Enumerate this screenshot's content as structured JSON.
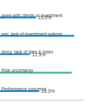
{
  "chart_data": {
    "type": "bar",
    "orientation": "horizontal",
    "categories": [
      "gned with clients or investment",
      "ess: lack of investment options",
      "iency: lack of data & index",
      "Risk uncertainty",
      "Performance concerns"
    ],
    "values": [
      15.0,
      31,
      12.5,
      30,
      16.3
    ],
    "value_labels": [
      "15.0%",
      null,
      "12.5%",
      null,
      "16.3%"
    ],
    "colors": [
      "#1f8fd8",
      "#1f8fd8",
      "#1f8fd8",
      "#3dbb9e",
      "#1f8fd8"
    ],
    "xlim": [
      0,
      35
    ],
    "tick_labels": false,
    "data_labels": true
  }
}
